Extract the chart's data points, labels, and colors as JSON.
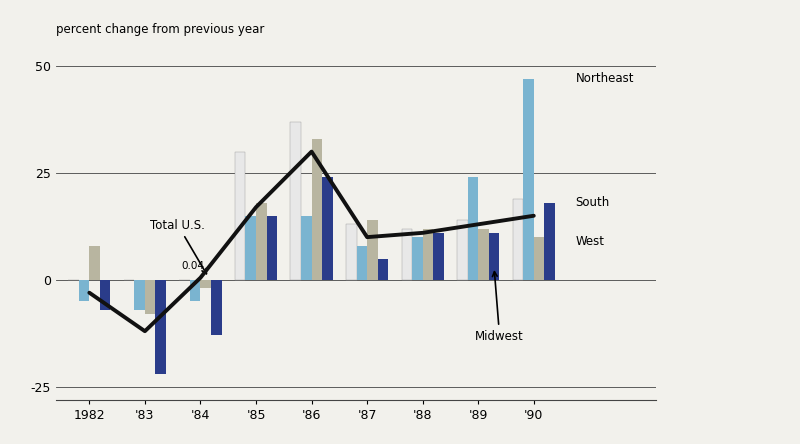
{
  "years": [
    1982,
    1983,
    1984,
    1985,
    1986,
    1987,
    1988,
    1989,
    1990
  ],
  "year_labels": [
    "1982",
    "'83",
    "'84",
    "'85",
    "'86",
    "'87",
    "'88",
    "'89",
    "'90"
  ],
  "south": [
    0.0,
    0.0,
    0.04,
    30.0,
    37.0,
    13.0,
    12.0,
    14.0,
    19.0
  ],
  "northeast": [
    -5.0,
    -7.0,
    -5.0,
    15.0,
    15.0,
    8.0,
    10.0,
    24.0,
    47.0
  ],
  "west": [
    8.0,
    -8.0,
    -2.0,
    18.0,
    33.0,
    14.0,
    12.0,
    12.0,
    10.0
  ],
  "midwest": [
    -7.0,
    -22.0,
    -13.0,
    15.0,
    24.0,
    5.0,
    11.0,
    11.0,
    18.0
  ],
  "total_us": [
    -3.0,
    -12.0,
    0.5,
    17.0,
    30.0,
    10.0,
    11.0,
    13.0,
    15.0
  ],
  "color_south": "#e8e8e8",
  "color_northeast": "#7ab4d0",
  "color_west": "#b8b5a0",
  "color_midwest": "#2a3c8a",
  "color_line": "#111111",
  "color_bg": "#f2f1ec",
  "ylim": [
    -28,
    53
  ],
  "yticks": [
    -25,
    0,
    25,
    50
  ],
  "bar_width": 0.19,
  "ylabel_text": "percent change from previous year",
  "total_us_label": "Total U.S.",
  "northeast_label": "Northeast",
  "south_label": "South",
  "west_label": "West",
  "midwest_label": "Midwest",
  "annotation_04": "0.04"
}
